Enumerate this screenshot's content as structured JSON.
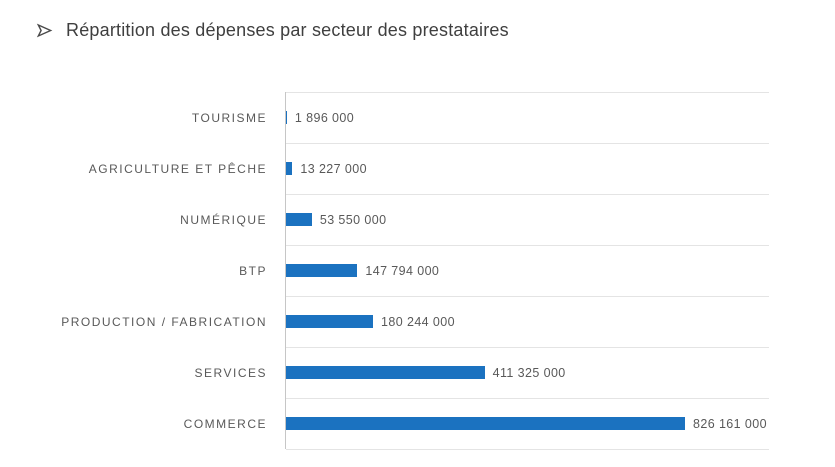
{
  "header": {
    "title": "Répartition des dépenses par secteur des prestataires"
  },
  "colors": {
    "bar": "#1B72C0",
    "gridline": "#E4E4E4",
    "axis_line": "#C6C6C6",
    "category_label": "#595959",
    "value_label": "#595959",
    "title_text": "#3F3F3F",
    "background": "#FFFFFF"
  },
  "chart_data": {
    "type": "bar",
    "orientation": "horizontal",
    "title": "Répartition des dépenses par secteur des prestataires",
    "categories": [
      "TOURISME",
      "AGRICULTURE ET PÊCHE",
      "NUMÉRIQUE",
      "BTP",
      "PRODUCTION / FABRICATION",
      "SERVICES",
      "COMMERCE"
    ],
    "values": [
      1896000,
      13227000,
      53550000,
      147794000,
      180244000,
      411325000,
      826161000
    ],
    "value_labels": [
      "1 896 000",
      "13 227 000",
      "53 550 000",
      "147 794 000",
      "180 244 000",
      "411 325 000",
      "826 161 000"
    ],
    "xlabel": "",
    "ylabel": "",
    "xlim": [
      0,
      1000000000
    ],
    "grid": "horizontal category separators",
    "legend": "none",
    "data_labels": "outside end"
  }
}
